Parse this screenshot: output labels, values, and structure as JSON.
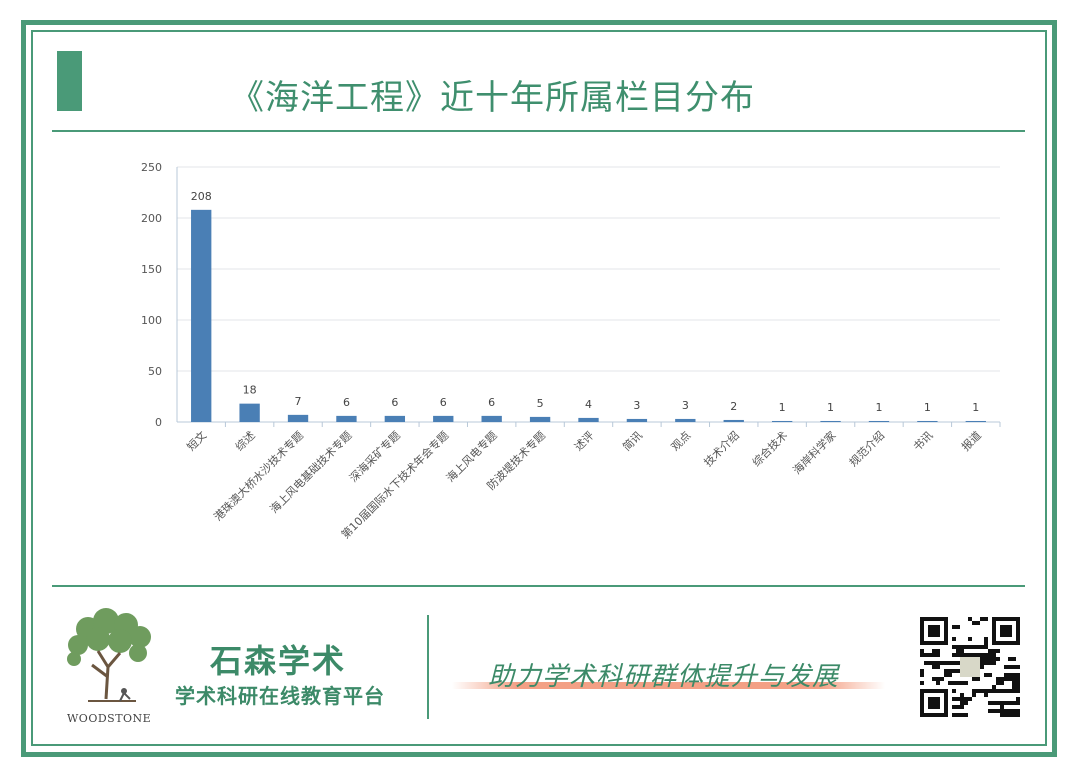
{
  "title": "《海洋工程》近十年所属栏目分布",
  "chart_data": {
    "type": "bar",
    "categories": [
      "短文",
      "综述",
      "港珠澳大桥水沙技术专题",
      "海上风电基础技术专题",
      "深海采矿专题",
      "第10届国际水下技术年会专题",
      "海上风电专题",
      "防波堤技术专题",
      "述评",
      "简讯",
      "观点",
      "技术介绍",
      "综合技术",
      "海岸科学家",
      "规范介绍",
      "书讯",
      "报道"
    ],
    "values": [
      208,
      18,
      7,
      6,
      6,
      6,
      6,
      5,
      4,
      3,
      3,
      2,
      1,
      1,
      1,
      1,
      1
    ],
    "ylim": [
      0,
      250
    ],
    "yticks": [
      0,
      50,
      100,
      150,
      200,
      250
    ],
    "bar_color": "#4a7fb5",
    "data_labels": true,
    "grid": "horizontal"
  },
  "footer": {
    "brand_name": "石森学术",
    "brand_subtitle": "学术科研在线教育平台",
    "logo_text": "WOODSTONE",
    "slogan": "助力学术科研群体提升与发展"
  },
  "colors": {
    "frame": "#4a9a78",
    "title": "#3f8f6e",
    "slogan_highlight": "#f29678"
  }
}
